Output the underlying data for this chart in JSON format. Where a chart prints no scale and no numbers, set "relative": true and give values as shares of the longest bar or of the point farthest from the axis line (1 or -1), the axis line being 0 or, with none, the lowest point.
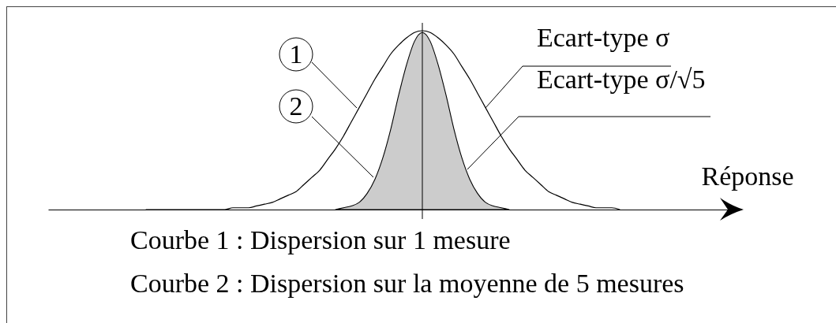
{
  "chart_data": {
    "type": "line",
    "relative": true,
    "xlabel": "Réponse",
    "categories": [
      null,
      null,
      null,
      null,
      null,
      null,
      null,
      null,
      null,
      null,
      null,
      null,
      null,
      null,
      null,
      null,
      null,
      null,
      null,
      null,
      null,
      null,
      null,
      null,
      null,
      null,
      null,
      null,
      null,
      null,
      null,
      null,
      null,
      null,
      null,
      null,
      null,
      null,
      null,
      null,
      null,
      null,
      null,
      null,
      null,
      null,
      null,
      null,
      null,
      null,
      null,
      null,
      null,
      null,
      null,
      null,
      null,
      null,
      null,
      null,
      null,
      null,
      null,
      null,
      null,
      null,
      null,
      null,
      null,
      null,
      null,
      null,
      null,
      null,
      null,
      null,
      null,
      null,
      null,
      null,
      null,
      null,
      null,
      null,
      null,
      null,
      null,
      null
    ],
    "series": [
      {
        "color": "#000000",
        "values": [
          null,
          null,
          null,
          null,
          null,
          null,
          null,
          null,
          null,
          null,
          null,
          null,
          0,
          0,
          0,
          0,
          0,
          0,
          0,
          0,
          0,
          0,
          0,
          0.01,
          0.01,
          0.01,
          0.02,
          0.03,
          0.04,
          0.06,
          0.08,
          0.1,
          0.14,
          0.18,
          0.22,
          0.28,
          0.34,
          0.41,
          0.49,
          0.57,
          0.65,
          0.73,
          0.8,
          0.87,
          0.92,
          0.96,
          0.99,
          1,
          0.99,
          0.96,
          0.92,
          0.87,
          0.8,
          0.73,
          0.65,
          0.57,
          0.49,
          0.41,
          0.34,
          0.28,
          0.22,
          0.18,
          0.14,
          0.1,
          0.08,
          0.06,
          0.04,
          0.03,
          0.02,
          0.01,
          0.01,
          0.01,
          0,
          null,
          null,
          null,
          null,
          null,
          null,
          null,
          null,
          null,
          null,
          null,
          null,
          null,
          null,
          null
        ]
      },
      {
        "type": "area",
        "color": "#cccccc",
        "values": [
          null,
          null,
          null,
          null,
          null,
          null,
          null,
          null,
          null,
          null,
          null,
          null,
          null,
          null,
          null,
          null,
          null,
          null,
          null,
          null,
          null,
          null,
          null,
          null,
          null,
          null,
          null,
          null,
          null,
          null,
          null,
          null,
          null,
          null,
          null,
          null,
          0,
          0.01,
          0.02,
          0.04,
          0.09,
          0.17,
          0.29,
          0.45,
          0.64,
          0.81,
          0.94,
          0.99,
          0.94,
          0.81,
          0.64,
          0.45,
          0.29,
          0.17,
          0.09,
          0.04,
          0.02,
          0.01,
          0,
          null,
          null,
          null,
          null,
          null,
          null,
          null,
          null,
          null,
          null,
          null,
          null,
          null,
          null,
          null,
          null,
          null,
          null,
          null,
          null,
          null,
          null,
          null,
          null,
          null,
          null,
          null,
          null,
          null
        ]
      }
    ],
    "ref_lines": [
      {
        "axis": "x"
      }
    ],
    "annotations": [
      "1",
      "2",
      "Ecart-type σ",
      "Ecart-type σ/√5",
      "Courbe 1 : Dispersion sur 1 mesure",
      "Courbe 2 : Dispersion sur la moyenne de 5 mesures"
    ]
  }
}
